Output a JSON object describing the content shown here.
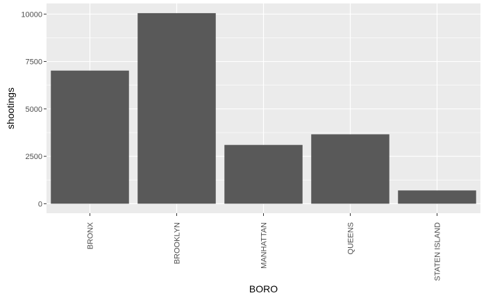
{
  "chart_data": {
    "type": "bar",
    "title": "",
    "xlabel": "BORO",
    "ylabel": "shootings",
    "categories": [
      "BRONX",
      "BROOKLYN",
      "MANHATTAN",
      "QUEENS",
      "STATEN ISLAND"
    ],
    "values": [
      7020,
      10050,
      3100,
      3660,
      700
    ],
    "ylim": [
      -500,
      10560
    ],
    "yticks": [
      0,
      2500,
      5000,
      7500,
      10000
    ],
    "ytick_labels": [
      "0",
      "2500",
      "5000",
      "7500",
      "10000"
    ],
    "grid": true,
    "legend": "none",
    "colors": {
      "bar": "#595959",
      "panel_background": "#ebebeb",
      "grid_major": "#ffffff",
      "tick_text": "#4d4d4d"
    }
  }
}
